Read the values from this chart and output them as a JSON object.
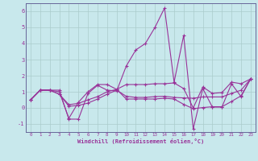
{
  "xlabel": "Windchill (Refroidissement éolien,°C)",
  "bg_color": "#c8e8ec",
  "line_color": "#993399",
  "grid_color": "#aacccc",
  "spine_color": "#666699",
  "xlim": [
    -0.5,
    23.5
  ],
  "ylim": [
    -1.5,
    6.5
  ],
  "yticks": [
    -1,
    0,
    1,
    2,
    3,
    4,
    5,
    6
  ],
  "xticks": [
    0,
    1,
    2,
    3,
    4,
    5,
    6,
    7,
    8,
    9,
    10,
    11,
    12,
    13,
    14,
    15,
    16,
    17,
    18,
    19,
    20,
    21,
    22,
    23
  ],
  "lines": [
    [
      0.5,
      1.1,
      1.1,
      1.1,
      -0.7,
      -0.7,
      0.9,
      1.4,
      1.1,
      1.05,
      2.6,
      3.6,
      4.0,
      5.0,
      6.2,
      1.6,
      4.5,
      -1.3,
      1.2,
      0.05,
      0.05,
      1.5,
      0.7,
      1.8
    ],
    [
      0.5,
      1.1,
      1.1,
      1.0,
      -0.65,
      0.35,
      1.0,
      1.45,
      1.45,
      1.15,
      1.45,
      1.45,
      1.45,
      1.5,
      1.5,
      1.55,
      1.2,
      0.0,
      1.3,
      0.9,
      0.95,
      1.6,
      1.5,
      1.8
    ],
    [
      0.5,
      1.1,
      1.1,
      0.85,
      0.2,
      0.28,
      0.5,
      0.7,
      1.0,
      1.15,
      0.55,
      0.55,
      0.55,
      0.55,
      0.6,
      0.55,
      0.22,
      -0.05,
      0.02,
      0.07,
      0.07,
      0.4,
      0.75,
      1.8
    ],
    [
      0.5,
      1.1,
      1.1,
      0.85,
      0.1,
      0.15,
      0.3,
      0.55,
      0.85,
      1.1,
      0.72,
      0.65,
      0.65,
      0.7,
      0.72,
      0.65,
      0.62,
      0.6,
      0.68,
      0.68,
      0.68,
      0.9,
      1.1,
      1.8
    ]
  ]
}
